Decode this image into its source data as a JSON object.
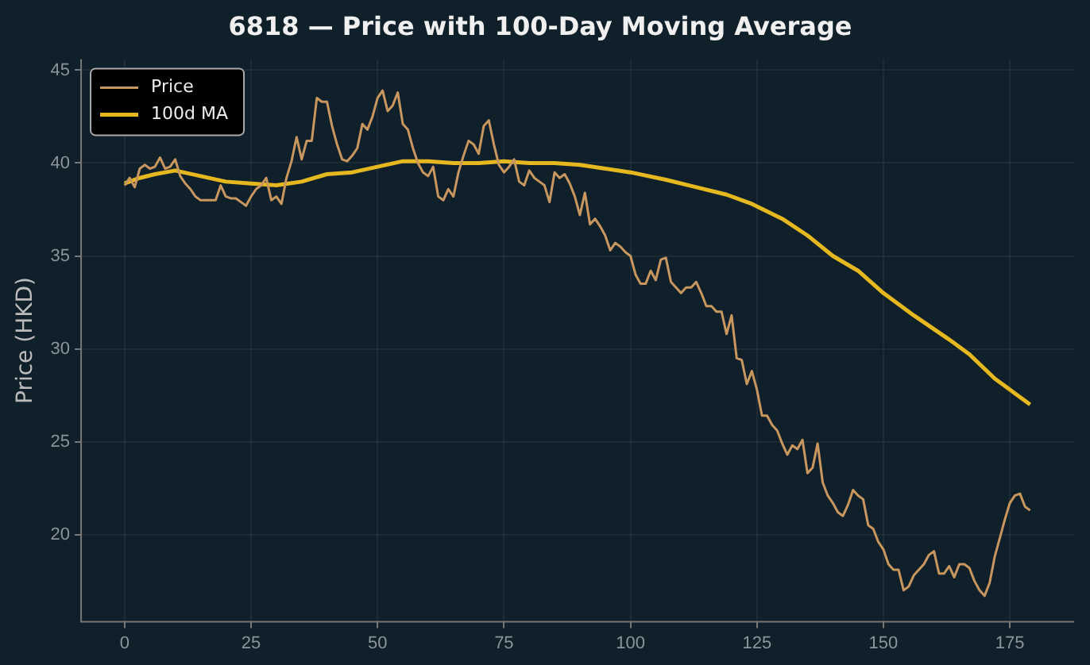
{
  "chart_data": {
    "type": "line",
    "title": "6818 — Price with 100-Day Moving Average",
    "ylabel": "Price (HKD)",
    "xlim": [
      -8.6,
      187.7
    ],
    "xticks": [
      0,
      25,
      50,
      75,
      100,
      125,
      150,
      175
    ],
    "ylim": [
      15.3,
      45.6
    ],
    "yticks": [
      20,
      25,
      30,
      35,
      40,
      45
    ],
    "grid": true,
    "legend": "top left",
    "series": [
      {
        "name": "Price",
        "color": "#c8965f",
        "x": [
          0,
          1,
          2,
          3,
          4,
          5,
          6,
          7,
          8,
          9,
          10,
          11,
          12,
          13,
          14,
          15,
          16,
          17,
          18,
          19,
          20,
          21,
          22,
          23,
          24,
          25,
          26,
          27,
          28,
          29,
          30,
          31,
          32,
          33,
          34,
          35,
          36,
          37,
          38,
          39,
          40,
          41,
          42,
          43,
          44,
          45,
          46,
          47,
          48,
          49,
          50,
          51,
          52,
          53,
          54,
          55,
          56,
          57,
          58,
          59,
          60,
          61,
          62,
          63,
          64,
          65,
          66,
          67,
          68,
          69,
          70,
          71,
          72,
          73,
          74,
          75,
          76,
          77,
          78,
          79,
          80,
          81,
          82,
          83,
          84,
          85,
          86,
          87,
          88,
          89,
          90,
          91,
          92,
          93,
          94,
          95,
          96,
          97,
          98,
          99,
          100,
          101,
          102,
          103,
          104,
          105,
          106,
          107,
          108,
          109,
          110,
          111,
          112,
          113,
          114,
          115,
          116,
          117,
          118,
          119,
          120,
          121,
          122,
          123,
          124,
          125,
          126,
          127,
          128,
          129,
          130,
          131,
          132,
          133,
          134,
          135,
          136,
          137,
          138,
          139,
          140,
          141,
          142,
          143,
          144,
          145,
          146,
          147,
          148,
          149,
          150,
          151,
          152,
          153,
          154,
          155,
          156,
          157,
          158,
          159,
          160,
          161,
          162,
          163,
          164,
          165,
          166,
          167,
          168,
          169,
          170,
          171,
          172,
          173,
          174,
          175,
          176,
          177,
          178,
          179
        ],
        "values": [
          38.8,
          39.2,
          38.7,
          39.7,
          39.9,
          39.7,
          39.8,
          40.3,
          39.7,
          39.8,
          40.2,
          39.3,
          38.9,
          38.6,
          38.2,
          38.0,
          38.0,
          38.0,
          38.0,
          38.8,
          38.2,
          38.1,
          38.1,
          37.9,
          37.7,
          38.2,
          38.6,
          38.8,
          39.2,
          38.0,
          38.2,
          37.8,
          39.2,
          40.1,
          41.4,
          40.2,
          41.2,
          41.2,
          43.5,
          43.3,
          43.3,
          42.0,
          41.0,
          40.2,
          40.1,
          40.4,
          40.8,
          42.1,
          41.8,
          42.5,
          43.5,
          43.9,
          42.8,
          43.1,
          43.8,
          42.1,
          41.8,
          40.8,
          40.0,
          39.5,
          39.3,
          39.8,
          38.2,
          38.0,
          38.6,
          38.2,
          39.5,
          40.4,
          41.2,
          41.0,
          40.5,
          42.0,
          42.3,
          41.0,
          39.9,
          39.5,
          39.8,
          40.2,
          39.0,
          38.8,
          39.6,
          39.2,
          39.0,
          38.8,
          37.9,
          39.5,
          39.2,
          39.4,
          38.9,
          38.2,
          37.2,
          38.4,
          36.7,
          37.0,
          36.6,
          36.1,
          35.3,
          35.7,
          35.5,
          35.2,
          35.0,
          34.0,
          33.5,
          33.5,
          34.2,
          33.7,
          34.8,
          34.9,
          33.6,
          33.3,
          33.0,
          33.3,
          33.3,
          33.6,
          33.0,
          32.3,
          32.3,
          32.0,
          32.0,
          30.8,
          31.8,
          29.5,
          29.4,
          28.1,
          28.8,
          27.8,
          26.4,
          26.4,
          25.9,
          25.6,
          24.9,
          24.3,
          24.8,
          24.6,
          25.1,
          23.3,
          23.6,
          24.9,
          22.8,
          22.1,
          21.7,
          21.2,
          21.0,
          21.6,
          22.4,
          22.1,
          21.9,
          20.5,
          20.3,
          19.6,
          19.2,
          18.4,
          18.1,
          18.1,
          17.0,
          17.2,
          17.8,
          18.1,
          18.4,
          18.9,
          19.1,
          17.9,
          17.9,
          18.3,
          17.7,
          18.4,
          18.4,
          18.2,
          17.5,
          17.0,
          16.7,
          17.4,
          18.8,
          19.8,
          20.8,
          21.7,
          22.1,
          22.2,
          21.5,
          21.3
        ]
      },
      {
        "name": "100d MA",
        "color": "#e6b820",
        "x": [
          0,
          3,
          6,
          10,
          15,
          20,
          25,
          30,
          35,
          40,
          45,
          50,
          55,
          60,
          65,
          70,
          75,
          80,
          85,
          90,
          95,
          100,
          107,
          113,
          119,
          124,
          130,
          135,
          140,
          145,
          150,
          156,
          163,
          167,
          172,
          176,
          179
        ],
        "values": [
          38.9,
          39.2,
          39.4,
          39.6,
          39.3,
          39.0,
          38.9,
          38.8,
          39.0,
          39.4,
          39.5,
          39.8,
          40.1,
          40.1,
          40.0,
          40.0,
          40.1,
          40.0,
          40.0,
          39.9,
          39.7,
          39.5,
          39.1,
          38.7,
          38.3,
          37.8,
          37.0,
          36.1,
          35.0,
          34.2,
          33.0,
          31.8,
          30.5,
          29.7,
          28.4,
          27.6,
          27.0
        ]
      }
    ]
  }
}
